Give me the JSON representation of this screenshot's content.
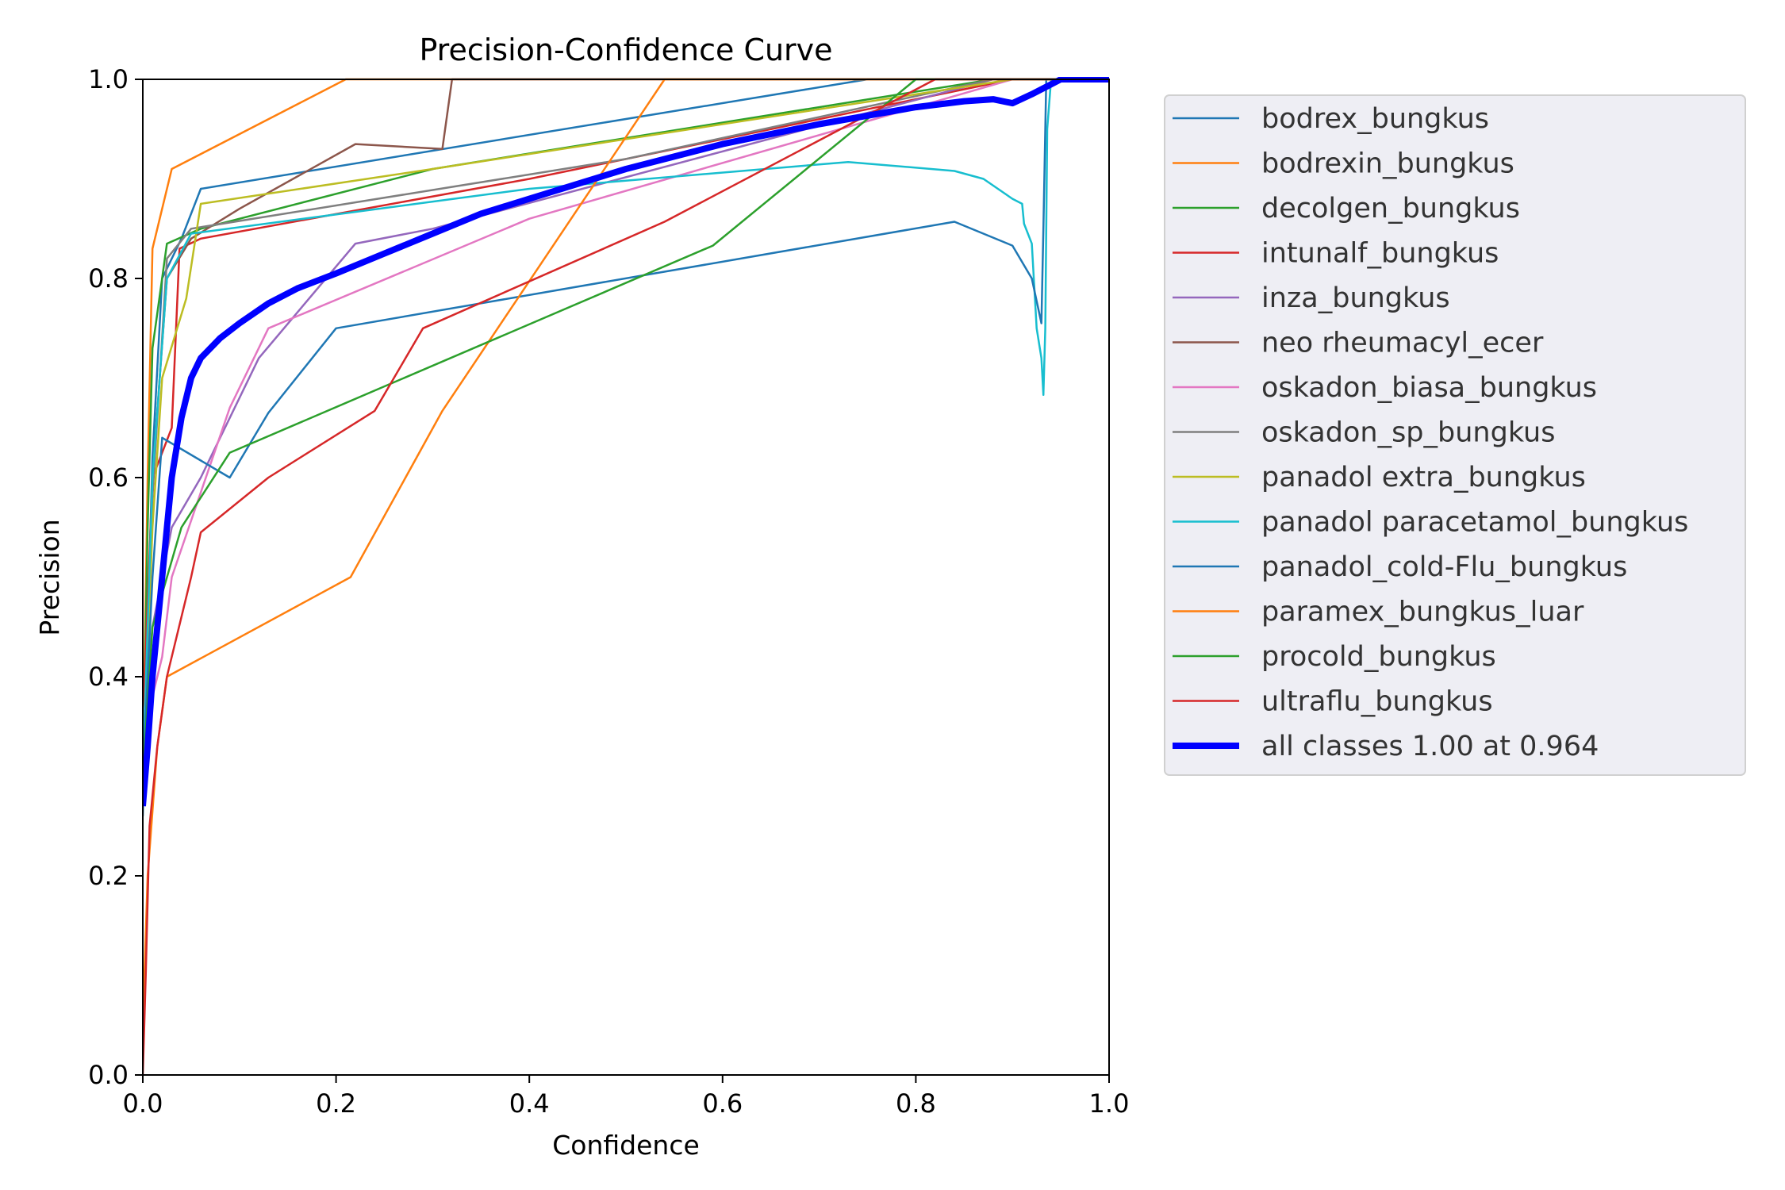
{
  "chart_data": {
    "type": "line",
    "title": "Precision-Confidence Curve",
    "xlabel": "Confidence",
    "ylabel": "Precision",
    "xlim": [
      0,
      1
    ],
    "ylim": [
      0,
      1
    ],
    "xticks": [
      "0.0",
      "0.2",
      "0.4",
      "0.6",
      "0.8",
      "1.0"
    ],
    "yticks": [
      "0.0",
      "0.2",
      "0.4",
      "0.6",
      "0.8",
      "1.0"
    ],
    "grid": false,
    "legend_position": "outside-right",
    "series": [
      {
        "name": "bodrex_bungkus",
        "color": "#1f77b4",
        "width": 2.5,
        "points": [
          [
            0,
            0.26
          ],
          [
            0.005,
            0.45
          ],
          [
            0.01,
            0.62
          ],
          [
            0.02,
            0.8
          ],
          [
            0.04,
            0.84
          ],
          [
            0.06,
            0.89
          ],
          [
            0.75,
            1.0
          ],
          [
            1.0,
            1.0
          ]
        ]
      },
      {
        "name": "bodrexin_bungkus",
        "color": "#ff7f0e",
        "width": 2.5,
        "points": [
          [
            0,
            0.3
          ],
          [
            0.005,
            0.6
          ],
          [
            0.01,
            0.83
          ],
          [
            0.03,
            0.91
          ],
          [
            0.21,
            1.0
          ],
          [
            1.0,
            1.0
          ]
        ]
      },
      {
        "name": "decolgen_bungkus",
        "color": "#2ca02c",
        "width": 2.5,
        "points": [
          [
            0,
            0.3
          ],
          [
            0.005,
            0.55
          ],
          [
            0.01,
            0.73
          ],
          [
            0.025,
            0.835
          ],
          [
            0.06,
            0.85
          ],
          [
            0.3,
            0.91
          ],
          [
            0.88,
            1.0
          ],
          [
            1.0,
            1.0
          ]
        ]
      },
      {
        "name": "intunalf_bungkus",
        "color": "#d62728",
        "width": 2.5,
        "points": [
          [
            0,
            0.35
          ],
          [
            0.01,
            0.6
          ],
          [
            0.03,
            0.65
          ],
          [
            0.038,
            0.83
          ],
          [
            0.06,
            0.84
          ],
          [
            0.4,
            0.9
          ],
          [
            0.9,
            1.0
          ],
          [
            1.0,
            1.0
          ]
        ]
      },
      {
        "name": "inza_bungkus",
        "color": "#9467bd",
        "width": 2.5,
        "points": [
          [
            0,
            0.35
          ],
          [
            0.01,
            0.45
          ],
          [
            0.03,
            0.55
          ],
          [
            0.06,
            0.6
          ],
          [
            0.12,
            0.72
          ],
          [
            0.22,
            0.835
          ],
          [
            0.3,
            0.85
          ],
          [
            0.88,
            1.0
          ],
          [
            1.0,
            1.0
          ]
        ]
      },
      {
        "name": "neo rheumacyl_ecer",
        "color": "#8c564b",
        "width": 2.5,
        "points": [
          [
            0,
            0.3
          ],
          [
            0.01,
            0.6
          ],
          [
            0.025,
            0.8
          ],
          [
            0.05,
            0.84
          ],
          [
            0.1,
            0.87
          ],
          [
            0.22,
            0.935
          ],
          [
            0.31,
            0.93
          ],
          [
            0.32,
            1.0
          ],
          [
            1.0,
            1.0
          ]
        ]
      },
      {
        "name": "oskadon_biasa_bungkus",
        "color": "#e377c2",
        "width": 2.5,
        "points": [
          [
            0,
            0.3
          ],
          [
            0.01,
            0.38
          ],
          [
            0.02,
            0.42
          ],
          [
            0.03,
            0.5
          ],
          [
            0.09,
            0.67
          ],
          [
            0.13,
            0.75
          ],
          [
            0.4,
            0.86
          ],
          [
            0.9,
            1.0
          ],
          [
            1.0,
            1.0
          ]
        ]
      },
      {
        "name": "oskadon_sp_bungkus",
        "color": "#7f7f7f",
        "width": 2.5,
        "points": [
          [
            0,
            0.3
          ],
          [
            0.01,
            0.58
          ],
          [
            0.025,
            0.82
          ],
          [
            0.05,
            0.85
          ],
          [
            0.5,
            0.92
          ],
          [
            0.88,
            1.0
          ],
          [
            1.0,
            1.0
          ]
        ]
      },
      {
        "name": "panadol extra_bungkus",
        "color": "#bcbd22",
        "width": 2.5,
        "points": [
          [
            0,
            0.3
          ],
          [
            0.01,
            0.55
          ],
          [
            0.02,
            0.7
          ],
          [
            0.045,
            0.78
          ],
          [
            0.06,
            0.875
          ],
          [
            0.3,
            0.91
          ],
          [
            0.9,
            1.0
          ],
          [
            1.0,
            1.0
          ]
        ]
      },
      {
        "name": "panadol paracetamol_bungkus",
        "color": "#17becf",
        "width": 2.5,
        "points": [
          [
            0,
            0.3
          ],
          [
            0.01,
            0.6
          ],
          [
            0.025,
            0.8
          ],
          [
            0.05,
            0.845
          ],
          [
            0.4,
            0.89
          ],
          [
            0.73,
            0.917
          ],
          [
            0.84,
            0.908
          ],
          [
            0.87,
            0.9
          ],
          [
            0.9,
            0.88
          ],
          [
            0.91,
            0.875
          ],
          [
            0.912,
            0.855
          ],
          [
            0.92,
            0.835
          ],
          [
            0.925,
            0.75
          ],
          [
            0.93,
            0.72
          ],
          [
            0.932,
            0.683
          ],
          [
            0.934,
            0.75
          ],
          [
            0.936,
            0.95
          ],
          [
            0.94,
            1.0
          ],
          [
            1.0,
            1.0
          ]
        ]
      },
      {
        "name": "panadol_cold-Flu_bungkus",
        "color": "#1f77b4",
        "width": 2.5,
        "points": [
          [
            0,
            0.3
          ],
          [
            0.01,
            0.5
          ],
          [
            0.02,
            0.64
          ],
          [
            0.09,
            0.6
          ],
          [
            0.13,
            0.665
          ],
          [
            0.2,
            0.75
          ],
          [
            0.84,
            0.857
          ],
          [
            0.9,
            0.833
          ],
          [
            0.92,
            0.8
          ],
          [
            0.93,
            0.755
          ],
          [
            0.932,
            0.85
          ],
          [
            0.935,
            1.0
          ],
          [
            1.0,
            1.0
          ]
        ]
      },
      {
        "name": "paramex_bungkus_luar",
        "color": "#ff7f0e",
        "width": 2.5,
        "points": [
          [
            0,
            0.05
          ],
          [
            0.005,
            0.2
          ],
          [
            0.015,
            0.33
          ],
          [
            0.025,
            0.4
          ],
          [
            0.215,
            0.5
          ],
          [
            0.31,
            0.667
          ],
          [
            0.54,
            1.0
          ],
          [
            1.0,
            1.0
          ]
        ]
      },
      {
        "name": "procold_bungkus",
        "color": "#2ca02c",
        "width": 2.5,
        "points": [
          [
            0,
            0.3
          ],
          [
            0.01,
            0.45
          ],
          [
            0.04,
            0.55
          ],
          [
            0.09,
            0.625
          ],
          [
            0.59,
            0.833
          ],
          [
            0.8,
            1.0
          ],
          [
            1.0,
            1.0
          ]
        ]
      },
      {
        "name": "ultraflu_bungkus",
        "color": "#d62728",
        "width": 2.5,
        "points": [
          [
            0,
            0.0
          ],
          [
            0.003,
            0.1
          ],
          [
            0.007,
            0.25
          ],
          [
            0.015,
            0.33
          ],
          [
            0.025,
            0.4
          ],
          [
            0.04,
            0.46
          ],
          [
            0.05,
            0.5
          ],
          [
            0.06,
            0.545
          ],
          [
            0.13,
            0.6
          ],
          [
            0.24,
            0.667
          ],
          [
            0.29,
            0.75
          ],
          [
            0.54,
            0.857
          ],
          [
            0.82,
            1.0
          ],
          [
            1.0,
            1.0
          ]
        ]
      },
      {
        "name": "all classes 1.00 at 0.964",
        "color": "#0000ff",
        "width": 8,
        "points": [
          [
            0,
            0.27
          ],
          [
            0.005,
            0.33
          ],
          [
            0.01,
            0.4
          ],
          [
            0.02,
            0.5
          ],
          [
            0.03,
            0.6
          ],
          [
            0.04,
            0.66
          ],
          [
            0.05,
            0.7
          ],
          [
            0.06,
            0.72
          ],
          [
            0.08,
            0.74
          ],
          [
            0.1,
            0.755
          ],
          [
            0.13,
            0.775
          ],
          [
            0.16,
            0.79
          ],
          [
            0.2,
            0.805
          ],
          [
            0.25,
            0.825
          ],
          [
            0.3,
            0.845
          ],
          [
            0.35,
            0.865
          ],
          [
            0.4,
            0.88
          ],
          [
            0.5,
            0.91
          ],
          [
            0.6,
            0.935
          ],
          [
            0.7,
            0.955
          ],
          [
            0.8,
            0.972
          ],
          [
            0.85,
            0.978
          ],
          [
            0.88,
            0.98
          ],
          [
            0.9,
            0.976
          ],
          [
            0.92,
            0.985
          ],
          [
            0.95,
            1.0
          ],
          [
            1.0,
            1.0
          ]
        ]
      }
    ]
  }
}
